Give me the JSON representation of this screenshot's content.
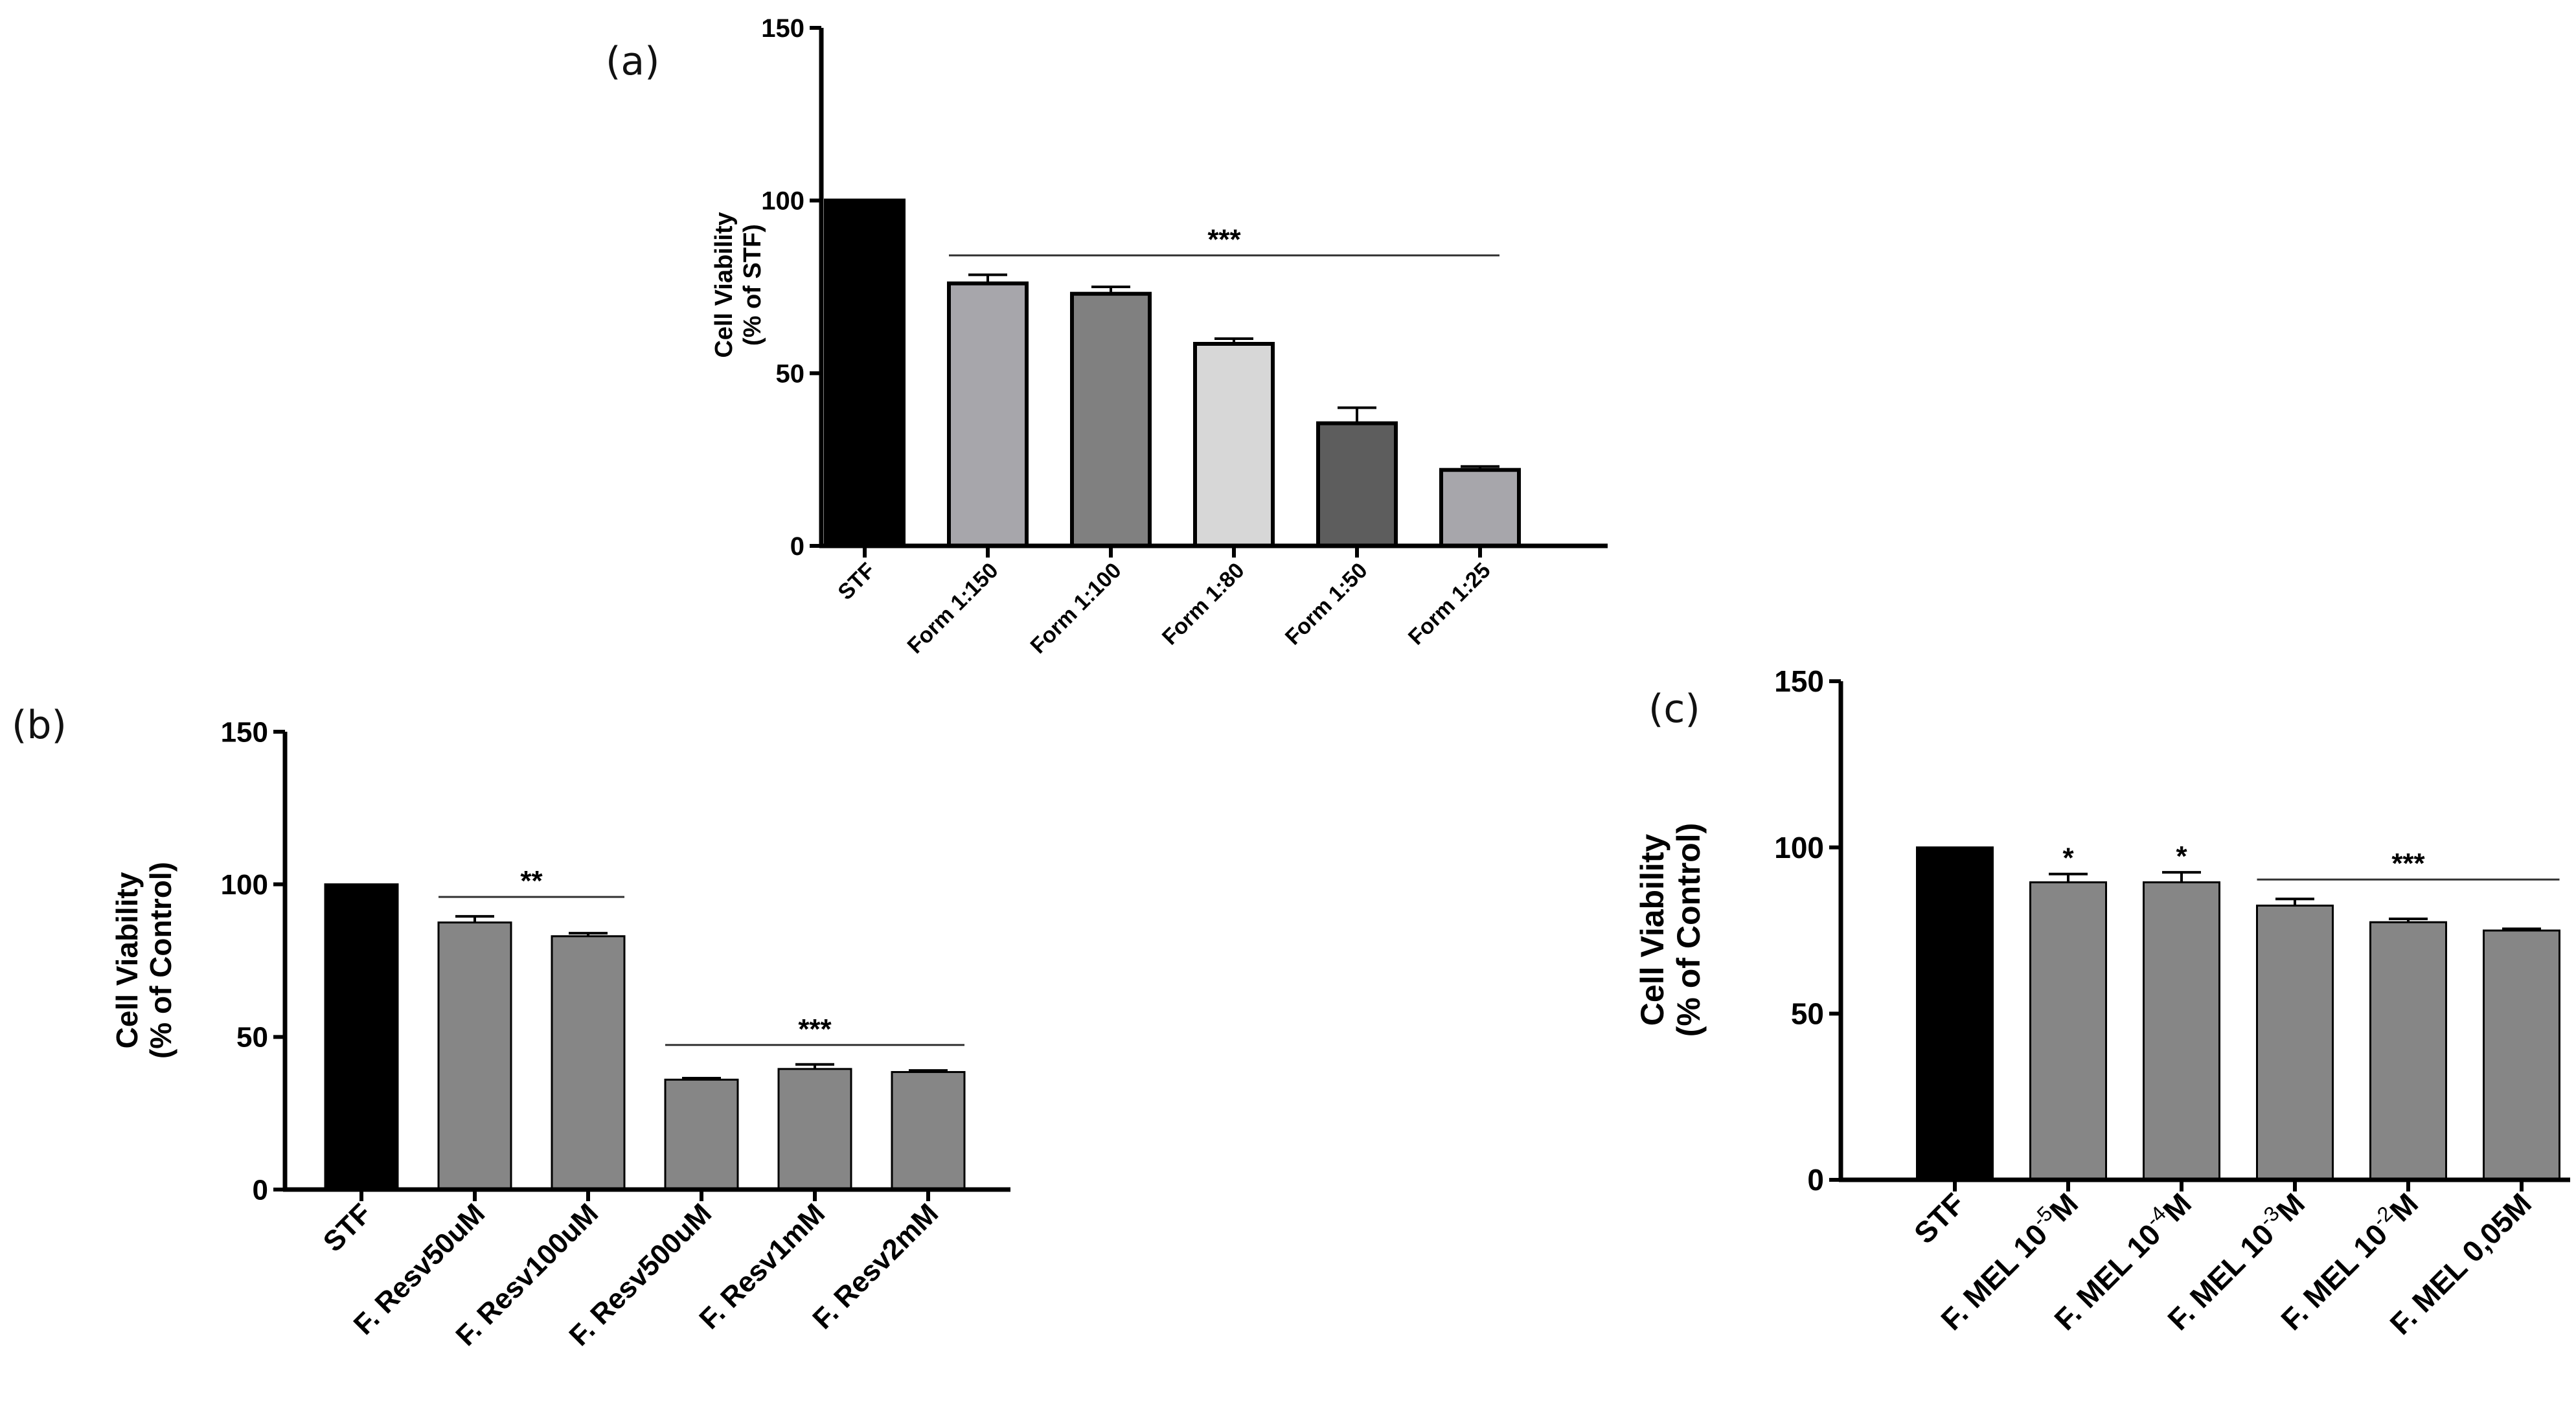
{
  "chart_data": [
    {
      "id": "a",
      "panel_label": "(a)",
      "type": "bar",
      "title": "",
      "xlabel": "",
      "ylabel_lines": [
        "Cell Viability",
        "(% of STF)"
      ],
      "ylim": [
        0,
        150
      ],
      "yticks": [
        "0",
        "50",
        "100",
        "150"
      ],
      "categories": [
        "STF",
        "Form 1:150",
        "Form 1:100",
        "Form 1:80",
        "Form 1:50",
        "Form 1:25"
      ],
      "values": [
        100,
        76,
        73,
        58.5,
        35.5,
        22
      ],
      "errors": [
        0,
        2.5,
        2,
        1.5,
        4.5,
        1
      ],
      "colors": [
        "#000000",
        "#a7a6ab",
        "#808080",
        "#d7d7d7",
        "#5d5d5d",
        "#a7a6ab"
      ],
      "significance": [
        {
          "label": "***",
          "from": 1,
          "to": 5
        }
      ]
    },
    {
      "id": "b",
      "panel_label": "(b)",
      "type": "bar",
      "title": "",
      "xlabel": "",
      "ylabel_lines": [
        "Cell Viability",
        "(% of Control)"
      ],
      "ylim": [
        0,
        150
      ],
      "yticks": [
        "0",
        "50",
        "100",
        "150"
      ],
      "categories": [
        "STF",
        "F. Resv50uM",
        "F. Resv100uM",
        "F. Resv500uM",
        "F. Resv1mM",
        "F. Resv2mM"
      ],
      "values": [
        100,
        87.5,
        83,
        36,
        39.5,
        38.5
      ],
      "errors": [
        0,
        2,
        1,
        0.5,
        1.5,
        0.5
      ],
      "colors": [
        "#000000",
        "#868686",
        "#868686",
        "#868686",
        "#868686",
        "#868686"
      ],
      "significance": [
        {
          "label": "**",
          "from": 1,
          "to": 2
        },
        {
          "label": "***",
          "from": 3,
          "to": 5
        }
      ]
    },
    {
      "id": "c",
      "panel_label": "(c)",
      "type": "bar",
      "title": "",
      "xlabel": "",
      "ylabel_lines": [
        "Cell Viability",
        "(% of Control)"
      ],
      "ylim": [
        0,
        150
      ],
      "yticks": [
        "0",
        "50",
        "100",
        "150"
      ],
      "categories": [
        "STF",
        "F. MEL 10-5M",
        "F. MEL 10-4M",
        "F. MEL 10-3M",
        "F. MEL 10-2M",
        "F. MEL 0,05M"
      ],
      "values": [
        100,
        89.5,
        89.5,
        82.5,
        77.5,
        75
      ],
      "errors": [
        0,
        2.5,
        3,
        2,
        1,
        0.5
      ],
      "colors": [
        "#000000",
        "#868686",
        "#868686",
        "#868686",
        "#868686",
        "#868686"
      ],
      "significance": [
        {
          "label": "*",
          "from": 1,
          "to": 1
        },
        {
          "label": "*",
          "from": 2,
          "to": 2
        },
        {
          "label": "***",
          "from": 3,
          "to": 5
        }
      ]
    }
  ]
}
